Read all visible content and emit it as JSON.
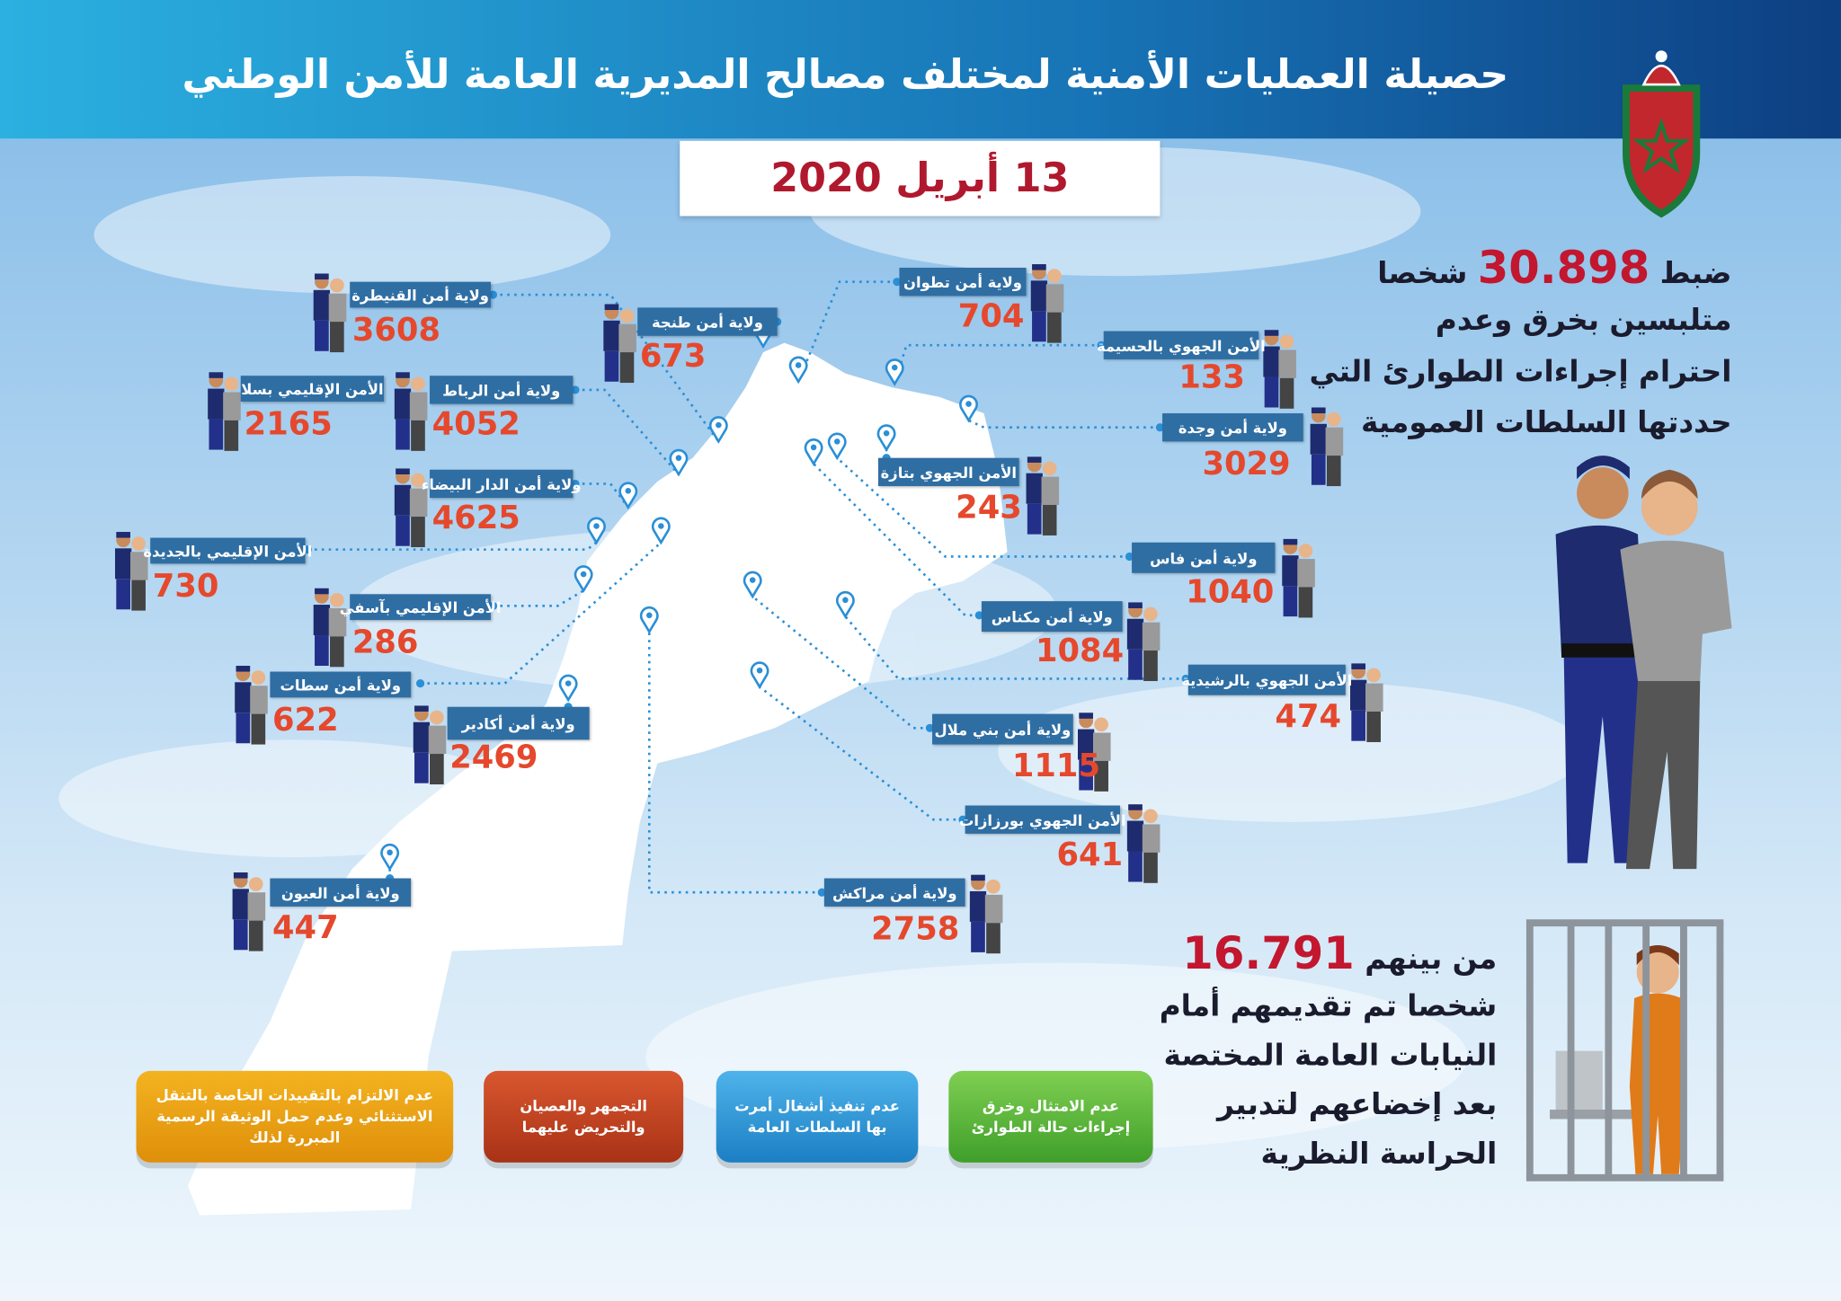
{
  "header": {
    "title": "حصيلة العمليات الأمنية لمختلف مصالح المديرية العامة للأمن الوطني"
  },
  "date": "13 أبريل 2020",
  "regions": [
    {
      "label": "ولاية أمن القنيطرة",
      "value": 3608
    },
    {
      "label": "الأمن الإقليمي بسلا",
      "value": 2165
    },
    {
      "label": "ولاية أمن الرباط",
      "value": 4052
    },
    {
      "label": "ولاية أمن طنجة",
      "value": 673
    },
    {
      "label": "ولاية أمن الدار البيضاء",
      "value": 4625
    },
    {
      "label": "الأمن الإقليمي بالجديدة",
      "value": 730
    },
    {
      "label": "الأمن الإقليمي بآسفي",
      "value": 286
    },
    {
      "label": "ولاية أمن سطات",
      "value": 622
    },
    {
      "label": "ولاية أمن أكادير",
      "value": 2469
    },
    {
      "label": "ولاية أمن العيون",
      "value": 447
    },
    {
      "label": "ولاية أمن تطوان",
      "value": 704
    },
    {
      "label": "الأمن الجهوي بالحسيمة",
      "value": 133
    },
    {
      "label": "ولاية أمن وجدة",
      "value": 3029
    },
    {
      "label": "الأمن الجهوي بتازة",
      "value": 243
    },
    {
      "label": "ولاية أمن فاس",
      "value": 1040
    },
    {
      "label": "ولاية أمن مكناس",
      "value": 1084
    },
    {
      "label": "الأمن الجهوي بالرشيدية",
      "value": 474
    },
    {
      "label": "ولاية أمن بني ملال",
      "value": 1115
    },
    {
      "label": "الأمن الجهوي بورزازات",
      "value": 641
    },
    {
      "label": "ولاية أمن مراكش",
      "value": 2758
    }
  ],
  "summary": {
    "arrested": {
      "before": "ضبط",
      "number": "30.898",
      "after": "شخصا",
      "lines": [
        "متلبسين بخرق وعدم",
        "احترام إجراءات الطوارئ التي",
        "حددتها السلطات العمومية"
      ]
    },
    "detained": {
      "before": "من بينهم",
      "number": "16.791",
      "lines": [
        "شخصا تم تقديمهم أمام",
        "النيابات العامة المختصة",
        "بعد إخضاعهم لتدبير",
        "الحراسة النظرية"
      ]
    }
  },
  "legend": [
    {
      "lines": [
        "عدم الامتثال وخرق",
        "إجراءات حالة الطوارئ"
      ]
    },
    {
      "lines": [
        "عدم تنفيذ أشغال أمرت",
        "بها السلطات العامة"
      ]
    },
    {
      "lines": [
        "التجمهر والعصيان",
        "والتحريض عليهما"
      ]
    },
    {
      "lines": [
        "عدم الالتزام بالتقييدات الخاصة بالتنقل",
        "الاستثنائي وعدم حمل الوثيقة الرسمية",
        "المبررة لذلك"
      ]
    }
  ]
}
